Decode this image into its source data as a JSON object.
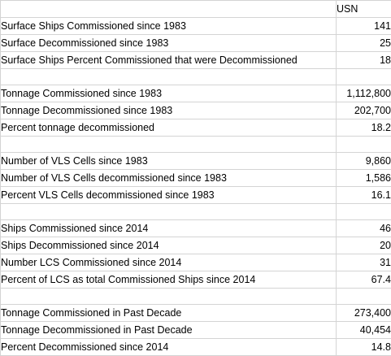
{
  "header": {
    "column_label": "",
    "column_value": "USN"
  },
  "groups": [
    {
      "rows": [
        {
          "label": "Surface Ships Commissioned since 1983",
          "value": "141"
        },
        {
          "label": "Surface Decommissioned since 1983",
          "value": "25"
        },
        {
          "label": "Surface Ships Percent Commissioned that were Decommissioned",
          "value": "18"
        }
      ]
    },
    {
      "rows": [
        {
          "label": "Tonnage Commissioned since 1983",
          "value": "1,112,800"
        },
        {
          "label": "Tonnage Decommissioned since 1983",
          "value": "202,700"
        },
        {
          "label": "Percent tonnage decommissioned",
          "value": "18.2"
        }
      ]
    },
    {
      "rows": [
        {
          "label": "Number of VLS Cells since 1983",
          "value": "9,860"
        },
        {
          "label": "Number of VLS Cells decommissioned since 1983",
          "value": "1,586"
        },
        {
          "label": "Percent VLS Cells decommissioned since 1983",
          "value": "16.1"
        }
      ]
    },
    {
      "rows": [
        {
          "label": "Ships Commissioned since 2014",
          "value": "46"
        },
        {
          "label": "Ships Decommissioned since 2014",
          "value": "20"
        },
        {
          "label": "Number LCS Commissioned since 2014",
          "value": "31"
        },
        {
          "label": "Percent of LCS as total Commissioned Ships since 2014",
          "value": "67.4"
        }
      ]
    },
    {
      "rows": [
        {
          "label": "Tonnage Commissioned in Past Decade",
          "value": "273,400"
        },
        {
          "label": "Tonnage Decommissioned in Past Decade",
          "value": "40,454"
        },
        {
          "label": "Percent Decommissioned since 2014",
          "value": "14.8"
        }
      ]
    }
  ]
}
